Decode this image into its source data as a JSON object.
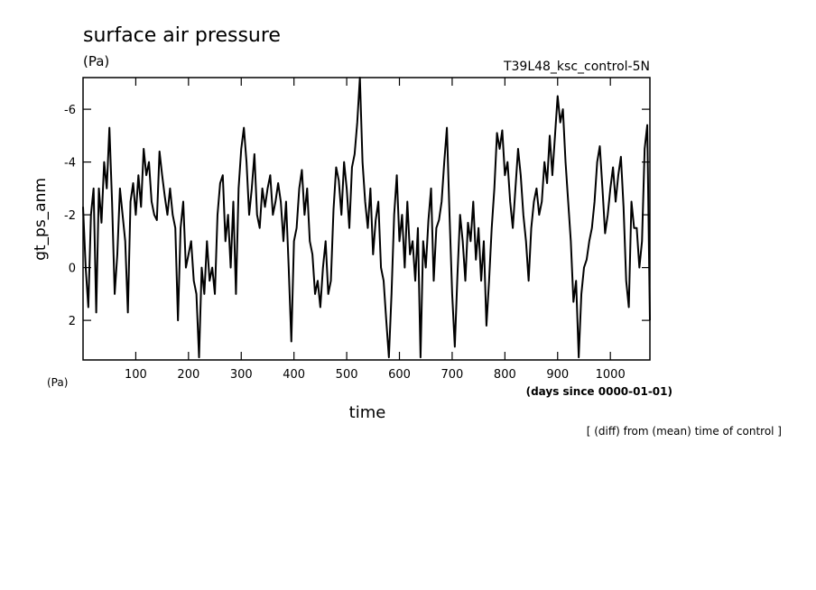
{
  "chart_data": {
    "type": "line",
    "title": "surface air pressure",
    "units": "(Pa)",
    "run_label": "T39L48_ksc_control-5N",
    "ylabel": "gt_ps_anm",
    "y_units": "(Pa)",
    "xlabel": "time",
    "x_units": "(days since 0000-01-01)",
    "note": "[ (diff) from (mean) time of control ]",
    "xlim": [
      0,
      1075
    ],
    "xticks": [
      100,
      200,
      300,
      400,
      500,
      600,
      700,
      800,
      900,
      1000
    ],
    "ylim": [
      3.5,
      -7.2
    ],
    "yticks": [
      -6,
      -4,
      -2,
      0,
      2
    ],
    "color": "#000000",
    "x": [
      0,
      5,
      10,
      15,
      20,
      25,
      30,
      35,
      40,
      45,
      50,
      55,
      60,
      65,
      70,
      75,
      80,
      85,
      90,
      95,
      100,
      105,
      110,
      115,
      120,
      125,
      130,
      135,
      140,
      145,
      150,
      155,
      160,
      165,
      170,
      175,
      180,
      185,
      190,
      195,
      200,
      205,
      210,
      215,
      220,
      225,
      230,
      235,
      240,
      245,
      250,
      255,
      260,
      265,
      270,
      275,
      280,
      285,
      290,
      295,
      300,
      305,
      310,
      315,
      320,
      325,
      330,
      335,
      340,
      345,
      350,
      355,
      360,
      365,
      370,
      375,
      380,
      385,
      390,
      395,
      400,
      405,
      410,
      415,
      420,
      425,
      430,
      435,
      440,
      445,
      450,
      455,
      460,
      465,
      470,
      475,
      480,
      485,
      490,
      495,
      500,
      505,
      510,
      515,
      520,
      525,
      530,
      535,
      540,
      545,
      550,
      555,
      560,
      565,
      570,
      575,
      580,
      585,
      590,
      595,
      600,
      605,
      610,
      615,
      620,
      625,
      630,
      635,
      640,
      645,
      650,
      655,
      660,
      665,
      670,
      675,
      680,
      685,
      690,
      695,
      700,
      705,
      710,
      715,
      720,
      725,
      730,
      735,
      740,
      745,
      750,
      755,
      760,
      765,
      770,
      775,
      780,
      785,
      790,
      795,
      800,
      805,
      810,
      815,
      820,
      825,
      830,
      835,
      840,
      845,
      850,
      855,
      860,
      865,
      870,
      875,
      880,
      885,
      890,
      895,
      900,
      905,
      910,
      915,
      920,
      925,
      930,
      935,
      940,
      945,
      950,
      955,
      960,
      965,
      970,
      975,
      980,
      985,
      990,
      995,
      1000,
      1005,
      1010,
      1015,
      1020,
      1025,
      1030,
      1035,
      1040,
      1045,
      1050,
      1055,
      1060,
      1065,
      1070,
      1075
    ],
    "values": [
      -2.3,
      0,
      1.5,
      -2,
      -3,
      1.7,
      -3,
      -1.7,
      -4,
      -3,
      -5.3,
      -2.5,
      1,
      -0.5,
      -3,
      -2,
      -1,
      1.7,
      -2.5,
      -3.2,
      -2,
      -3.5,
      -2.3,
      -4.5,
      -3.5,
      -4,
      -2.5,
      -2,
      -1.8,
      -4.4,
      -3.5,
      -2.7,
      -2,
      -3,
      -2,
      -1.5,
      2,
      -1.5,
      -2.5,
      0,
      -0.5,
      -1,
      0.5,
      1,
      3.4,
      0,
      1,
      -1,
      0.5,
      0,
      1,
      -2,
      -3.2,
      -3.5,
      -1,
      -2,
      0,
      -2.5,
      1,
      -3,
      -4.5,
      -5.3,
      -4,
      -2,
      -3,
      -4.3,
      -2,
      -1.5,
      -3,
      -2.3,
      -3,
      -3.5,
      -2,
      -2.5,
      -3.2,
      -2.5,
      -1,
      -2.5,
      0,
      2.8,
      -1,
      -1.5,
      -3,
      -3.7,
      -2,
      -3,
      -1,
      -0.5,
      1,
      0.5,
      1.5,
      0,
      -1,
      1,
      0.5,
      -2.2,
      -3.8,
      -3.3,
      -2,
      -4,
      -3,
      -1.5,
      -3.8,
      -4.3,
      -5.5,
      -7.2,
      -4,
      -2.5,
      -1.5,
      -3,
      -0.5,
      -1.8,
      -2.5,
      0,
      0.5,
      2,
      3.4,
      1,
      -2,
      -3.5,
      -1,
      -2,
      0,
      -2.5,
      -0.5,
      -1,
      0.5,
      -1.5,
      3.4,
      -1,
      0,
      -1.8,
      -3,
      0.5,
      -1.5,
      -1.8,
      -2.5,
      -4,
      -5.3,
      -2,
      1,
      3,
      0.3,
      -2,
      -1,
      0.5,
      -1.7,
      -1,
      -2.5,
      -0.3,
      -1.5,
      0.5,
      -1,
      2.2,
      0.5,
      -1.5,
      -3,
      -5.1,
      -4.5,
      -5.2,
      -3.5,
      -4,
      -2.5,
      -1.5,
      -3,
      -4.5,
      -3.5,
      -2,
      -1,
      0.5,
      -1.5,
      -2.5,
      -3,
      -2,
      -2.5,
      -4,
      -3.2,
      -5,
      -3.5,
      -5,
      -6.5,
      -5.5,
      -6,
      -4,
      -2.5,
      -1,
      1.3,
      0.5,
      3.4,
      1,
      0,
      -0.3,
      -1,
      -1.5,
      -2.5,
      -4,
      -4.6,
      -3,
      -1.3,
      -2,
      -3,
      -3.8,
      -2.5,
      -3.5,
      -4.2,
      -2.3,
      0.5,
      1.5,
      -2.5,
      -1.5,
      -1.5,
      0,
      -1,
      -4.5,
      -5.4,
      2
    ]
  }
}
